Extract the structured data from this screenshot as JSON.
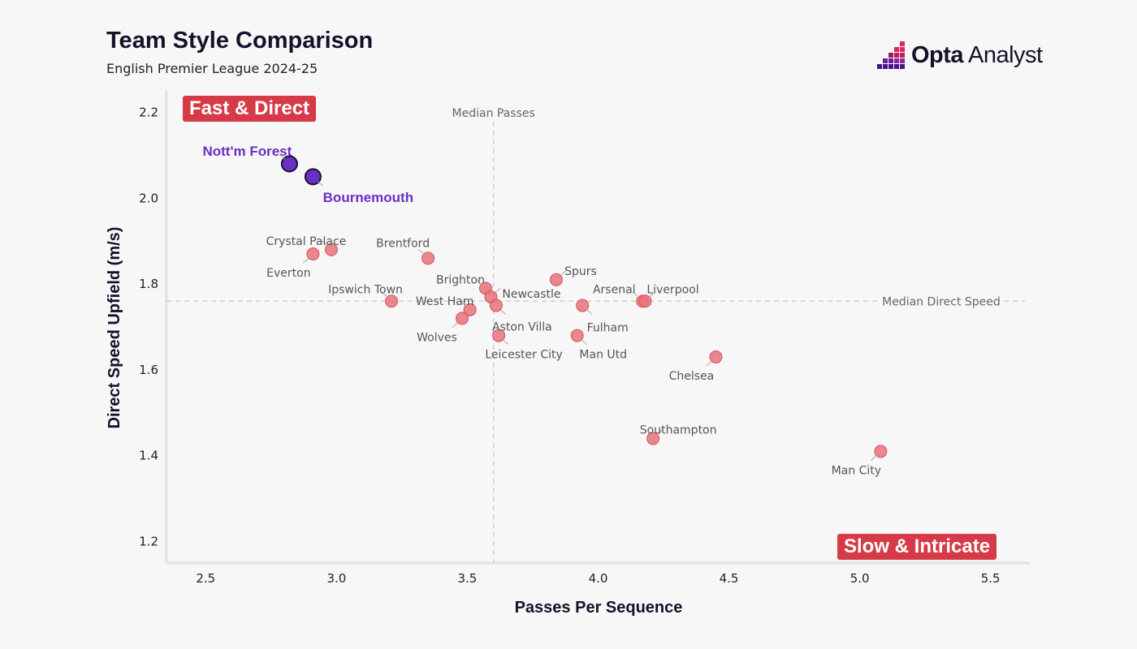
{
  "header": {
    "title": "Team Style Comparison",
    "subtitle": "English Premier League 2024-25"
  },
  "brand": {
    "name_bold": "Opta",
    "name_light": " Analyst"
  },
  "colors": {
    "point": "#e8737b",
    "point_stroke": "#d9505c",
    "highlight": "#6a2fc4",
    "badge": "#d63a47"
  },
  "quadrants": {
    "top_left": "Fast & Direct",
    "bottom_right": "Slow & Intricate"
  },
  "chart_data": {
    "type": "scatter",
    "title": "Team Style Comparison",
    "subtitle": "English Premier League 2024-25",
    "xlabel": "Passes Per Sequence",
    "ylabel": "Direct Speed Upfield (m/s)",
    "xlim": [
      2.35,
      5.65
    ],
    "ylim": [
      1.15,
      2.25
    ],
    "xticks": [
      "2.5",
      "3.0",
      "3.5",
      "4.0",
      "4.5",
      "5.0",
      "5.5"
    ],
    "yticks": [
      "1.2",
      "1.4",
      "1.6",
      "1.8",
      "2.0",
      "2.2"
    ],
    "median_x": 3.6,
    "median_y": 1.76,
    "median_x_label": "Median Passes",
    "median_y_label": "Median Direct Speed",
    "points": [
      {
        "name": "Nott'm Forest",
        "x": 2.82,
        "y": 2.08,
        "highlight": true
      },
      {
        "name": "Bournemouth",
        "x": 2.91,
        "y": 2.05,
        "highlight": true
      },
      {
        "name": "Crystal Palace",
        "x": 2.98,
        "y": 1.88
      },
      {
        "name": "Everton",
        "x": 2.91,
        "y": 1.87
      },
      {
        "name": "Brentford",
        "x": 3.35,
        "y": 1.86
      },
      {
        "name": "Ipswich Town",
        "x": 3.21,
        "y": 1.76
      },
      {
        "name": "Brighton",
        "x": 3.57,
        "y": 1.79
      },
      {
        "name": "Newcastle",
        "x": 3.59,
        "y": 1.77
      },
      {
        "name": "West Ham",
        "x": 3.51,
        "y": 1.74
      },
      {
        "name": "Aston Villa",
        "x": 3.61,
        "y": 1.75
      },
      {
        "name": "Wolves",
        "x": 3.48,
        "y": 1.72
      },
      {
        "name": "Leicester City",
        "x": 3.62,
        "y": 1.68
      },
      {
        "name": "Spurs",
        "x": 3.84,
        "y": 1.81
      },
      {
        "name": "Fulham",
        "x": 3.94,
        "y": 1.75
      },
      {
        "name": "Man Utd",
        "x": 3.92,
        "y": 1.68
      },
      {
        "name": "Arsenal",
        "x": 4.17,
        "y": 1.76
      },
      {
        "name": "Liverpool",
        "x": 4.18,
        "y": 1.76
      },
      {
        "name": "Chelsea",
        "x": 4.45,
        "y": 1.63
      },
      {
        "name": "Southampton",
        "x": 4.21,
        "y": 1.44
      },
      {
        "name": "Man City",
        "x": 5.08,
        "y": 1.41
      }
    ]
  }
}
